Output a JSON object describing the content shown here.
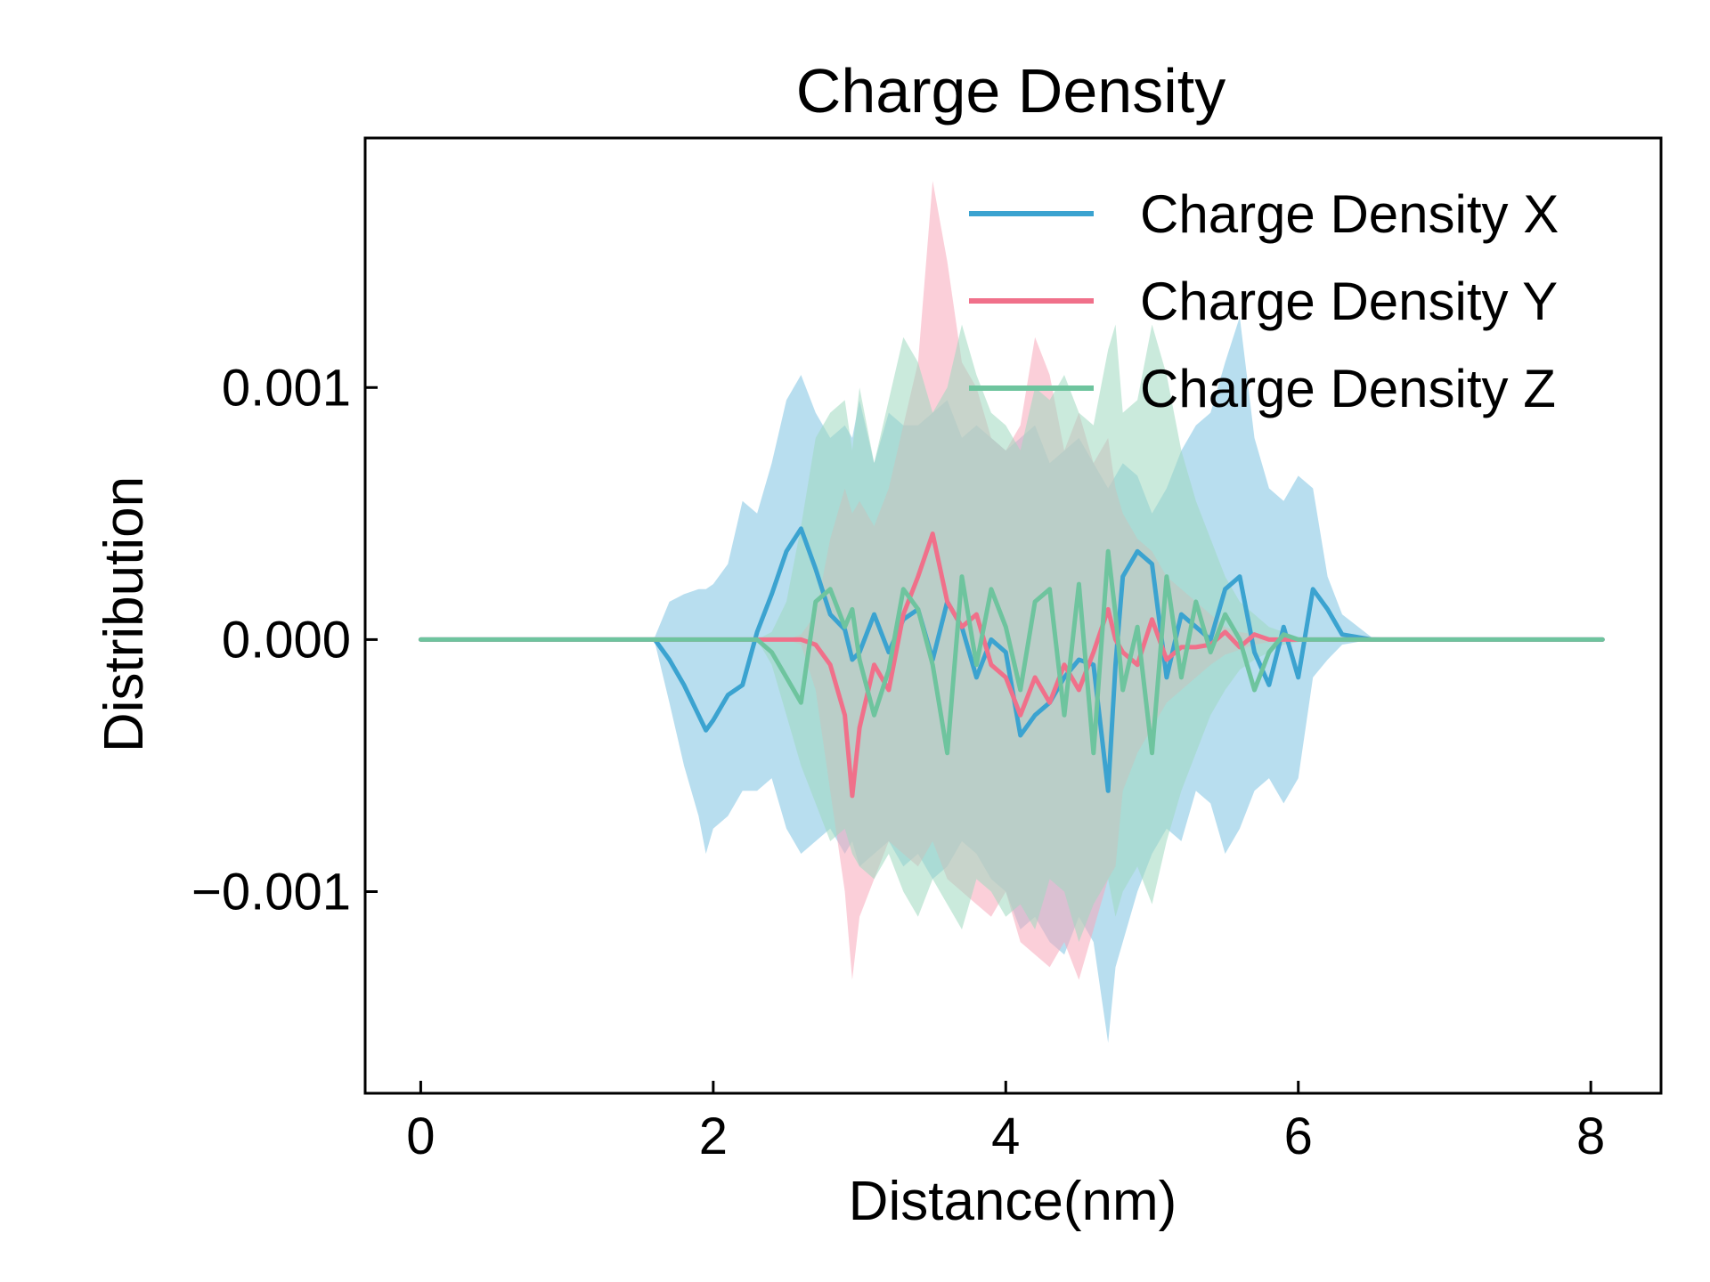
{
  "chart_data": {
    "type": "line",
    "title": "Charge Density",
    "xlabel": "Distance(nm)",
    "ylabel": "Distribution",
    "xlim": [
      -0.38,
      8.48
    ],
    "ylim": [
      -0.0018,
      0.00199
    ],
    "xticks": [
      {
        "value": 0,
        "label": "0"
      },
      {
        "value": 2,
        "label": "2"
      },
      {
        "value": 4,
        "label": "4"
      },
      {
        "value": 6,
        "label": "6"
      },
      {
        "value": 8,
        "label": "8"
      }
    ],
    "yticks": [
      {
        "value": -0.001,
        "label": "−0.001"
      },
      {
        "value": 0.0,
        "label": "0.000"
      },
      {
        "value": 0.001,
        "label": "0.001"
      }
    ],
    "grid": false,
    "legend_position": "top-right",
    "x": [
      0,
      0.5,
      1,
      1.5,
      1.6,
      1.7,
      1.8,
      1.9,
      1.95,
      2.0,
      2.1,
      2.2,
      2.3,
      2.4,
      2.5,
      2.6,
      2.7,
      2.8,
      2.9,
      2.95,
      3.0,
      3.1,
      3.2,
      3.3,
      3.4,
      3.5,
      3.6,
      3.7,
      3.8,
      3.9,
      4.0,
      4.1,
      4.2,
      4.3,
      4.4,
      4.5,
      4.6,
      4.7,
      4.75,
      4.8,
      4.9,
      5.0,
      5.1,
      5.2,
      5.3,
      5.4,
      5.5,
      5.6,
      5.7,
      5.8,
      5.9,
      6.0,
      6.1,
      6.2,
      6.3,
      6.5,
      7,
      7.5,
      8.08
    ],
    "series": [
      {
        "name": "Charge Density X",
        "color": "#3ba3d0",
        "fill_color": "#7ec2e1",
        "values": [
          0,
          0,
          0,
          0,
          0,
          -8e-05,
          -0.00018,
          -0.0003,
          -0.00036,
          -0.00032,
          -0.00022,
          -0.00018,
          3e-05,
          0.00018,
          0.00035,
          0.00044,
          0.00028,
          0.0001,
          4e-05,
          -8e-05,
          -5e-05,
          0.0001,
          -5e-05,
          8e-05,
          0.00012,
          -8e-05,
          0.00015,
          5e-05,
          -0.00015,
          0.0,
          -5e-05,
          -0.00038,
          -0.0003,
          -0.00025,
          -0.00015,
          -8e-05,
          -0.0001,
          -0.0006,
          -0.0001,
          0.00025,
          0.00035,
          0.0003,
          -0.00015,
          0.0001,
          5e-05,
          0.0,
          0.0002,
          0.00025,
          -5e-05,
          -0.00018,
          5e-05,
          -0.00015,
          0.0002,
          0.00012,
          2e-05,
          0,
          0,
          0,
          0
        ],
        "upper": [
          0,
          0,
          0,
          0,
          1e-05,
          0.00015,
          0.00018,
          0.0002,
          0.0002,
          0.00022,
          0.0003,
          0.00055,
          0.0005,
          0.0007,
          0.00095,
          0.00105,
          0.0009,
          0.0008,
          0.00085,
          0.0008,
          0.00095,
          0.0007,
          0.0009,
          0.00085,
          0.00085,
          0.0009,
          0.00095,
          0.0008,
          0.00085,
          0.0008,
          0.00075,
          0.0008,
          0.00085,
          0.0007,
          0.00075,
          0.0008,
          0.0007,
          0.0006,
          0.00065,
          0.0007,
          0.00065,
          0.0005,
          0.0006,
          0.00075,
          0.00085,
          0.0009,
          0.0011,
          0.00128,
          0.0008,
          0.0006,
          0.00055,
          0.00065,
          0.0006,
          0.00025,
          0.0001,
          1e-05,
          0,
          0,
          0
        ],
        "lower": [
          0,
          0,
          0,
          0,
          -1e-05,
          -0.00025,
          -0.0005,
          -0.0007,
          -0.00085,
          -0.00075,
          -0.0007,
          -0.0006,
          -0.0006,
          -0.00055,
          -0.00075,
          -0.00085,
          -0.0008,
          -0.00075,
          -0.00085,
          -0.0008,
          -0.0009,
          -0.00085,
          -0.0008,
          -0.0009,
          -0.00085,
          -0.00095,
          -0.0009,
          -0.0008,
          -0.00085,
          -0.00095,
          -0.001,
          -0.00115,
          -0.0011,
          -0.0012,
          -0.00125,
          -0.0011,
          -0.0012,
          -0.0016,
          -0.0013,
          -0.0012,
          -0.001,
          -0.00085,
          -0.00075,
          -0.0008,
          -0.0006,
          -0.00065,
          -0.00085,
          -0.00075,
          -0.0006,
          -0.00055,
          -0.00065,
          -0.00055,
          -0.00015,
          -8e-05,
          -2e-05,
          0,
          0,
          0,
          0
        ]
      },
      {
        "name": "Charge Density Y",
        "color": "#f0708a",
        "fill_color": "#f7a8ba",
        "values": [
          0,
          0,
          0,
          0,
          0,
          0,
          0,
          0,
          0,
          0,
          0,
          0,
          0,
          0,
          0,
          0,
          -2e-05,
          -0.0001,
          -0.0003,
          -0.00062,
          -0.00035,
          -0.0001,
          -0.0002,
          0.0001,
          0.00025,
          0.00042,
          0.00015,
          5e-05,
          0.0001,
          -0.0001,
          -0.00015,
          -0.0003,
          -0.00015,
          -0.00025,
          -0.0001,
          -0.0002,
          -5e-05,
          0.00012,
          0.0,
          -5e-05,
          -0.0001,
          8e-05,
          -8e-05,
          -3e-05,
          -3e-05,
          -2e-05,
          3e-05,
          -3e-05,
          2e-05,
          0.0,
          0.0,
          0,
          0,
          0,
          0,
          0,
          0,
          0,
          0
        ],
        "upper": [
          0,
          0,
          0,
          0,
          0,
          0,
          0,
          0,
          0,
          0,
          0,
          0,
          0,
          0,
          0,
          2e-05,
          0.0001,
          0.0004,
          0.0006,
          0.0005,
          0.00055,
          0.00045,
          0.0006,
          0.00085,
          0.0011,
          0.00182,
          0.0015,
          0.0011,
          0.001,
          0.0008,
          0.00075,
          0.00085,
          0.0012,
          0.00105,
          0.00075,
          0.0009,
          0.0007,
          0.0008,
          0.0006,
          0.0005,
          0.0004,
          0.00035,
          0.00025,
          0.0002,
          0.00015,
          0.0001,
          5e-05,
          3e-05,
          2e-05,
          1e-05,
          0,
          0,
          0,
          0,
          0,
          0,
          0,
          0,
          0
        ],
        "lower": [
          0,
          0,
          0,
          0,
          0,
          0,
          0,
          0,
          0,
          0,
          0,
          0,
          0,
          0,
          0,
          -2e-05,
          -0.0002,
          -0.0006,
          -0.001,
          -0.00135,
          -0.0011,
          -0.00095,
          -0.0008,
          -0.00085,
          -0.0009,
          -0.0008,
          -0.00095,
          -0.001,
          -0.00105,
          -0.0011,
          -0.001,
          -0.0012,
          -0.00125,
          -0.0013,
          -0.0012,
          -0.00135,
          -0.00115,
          -0.00095,
          -0.0009,
          -0.0006,
          -0.00045,
          -0.00035,
          -0.00025,
          -0.0002,
          -0.00015,
          -0.0001,
          -6e-05,
          -4e-05,
          -2e-05,
          -1e-05,
          0,
          0,
          0,
          0,
          0,
          0,
          0,
          0,
          0
        ]
      },
      {
        "name": "Charge Density Z",
        "color": "#6ec49e",
        "fill_color": "#9ed9bf",
        "values": [
          0,
          0,
          0,
          0,
          0,
          0,
          0,
          0,
          0,
          0,
          0,
          0,
          0,
          -5e-05,
          -0.00015,
          -0.00025,
          0.00015,
          0.0002,
          5e-05,
          0.00012,
          -8e-05,
          -0.0003,
          -0.00012,
          0.0002,
          0.00012,
          -0.0001,
          -0.00045,
          0.00025,
          -0.0001,
          0.0002,
          5e-05,
          -0.0002,
          0.00015,
          0.0002,
          -0.0003,
          0.00022,
          -0.00045,
          0.00035,
          0.0001,
          -0.0002,
          5e-05,
          -0.00045,
          0.00025,
          -0.00015,
          0.00015,
          -5e-05,
          0.0001,
          0.0,
          -0.0002,
          -5e-05,
          2e-05,
          0.0,
          0.0,
          0,
          0,
          0,
          0,
          0,
          0
        ],
        "upper": [
          0,
          0,
          0,
          0,
          0,
          0,
          0,
          0,
          0,
          0,
          0,
          0,
          0,
          3e-05,
          0.00015,
          0.00045,
          0.0008,
          0.0009,
          0.00095,
          0.00075,
          0.001,
          0.0007,
          0.00095,
          0.0012,
          0.0011,
          0.0009,
          0.001,
          0.00125,
          0.00105,
          0.0009,
          0.00085,
          0.00075,
          0.001,
          0.00095,
          0.00105,
          0.0009,
          0.00085,
          0.00115,
          0.00125,
          0.0009,
          0.00095,
          0.00125,
          0.00105,
          0.00075,
          0.00055,
          0.0004,
          0.00025,
          0.00015,
          0.0001,
          5e-05,
          3e-05,
          1e-05,
          0,
          0,
          0,
          0,
          0,
          0,
          0
        ],
        "lower": [
          0,
          0,
          0,
          0,
          0,
          0,
          0,
          0,
          0,
          0,
          0,
          0,
          0,
          -0.0001,
          -0.0003,
          -0.0005,
          -0.00065,
          -0.0008,
          -0.00075,
          -0.00085,
          -0.0009,
          -0.00095,
          -0.00085,
          -0.001,
          -0.0011,
          -0.00095,
          -0.00105,
          -0.00115,
          -0.00095,
          -0.001,
          -0.0011,
          -0.00105,
          -0.00115,
          -0.00095,
          -0.001,
          -0.0012,
          -0.00105,
          -0.00095,
          -0.0011,
          -0.001,
          -0.0009,
          -0.00105,
          -0.0008,
          -0.0006,
          -0.00045,
          -0.0003,
          -0.0002,
          -0.00012,
          -8e-05,
          -5e-05,
          -2e-05,
          -1e-05,
          0,
          0,
          0,
          0,
          0,
          0,
          0
        ]
      }
    ]
  }
}
